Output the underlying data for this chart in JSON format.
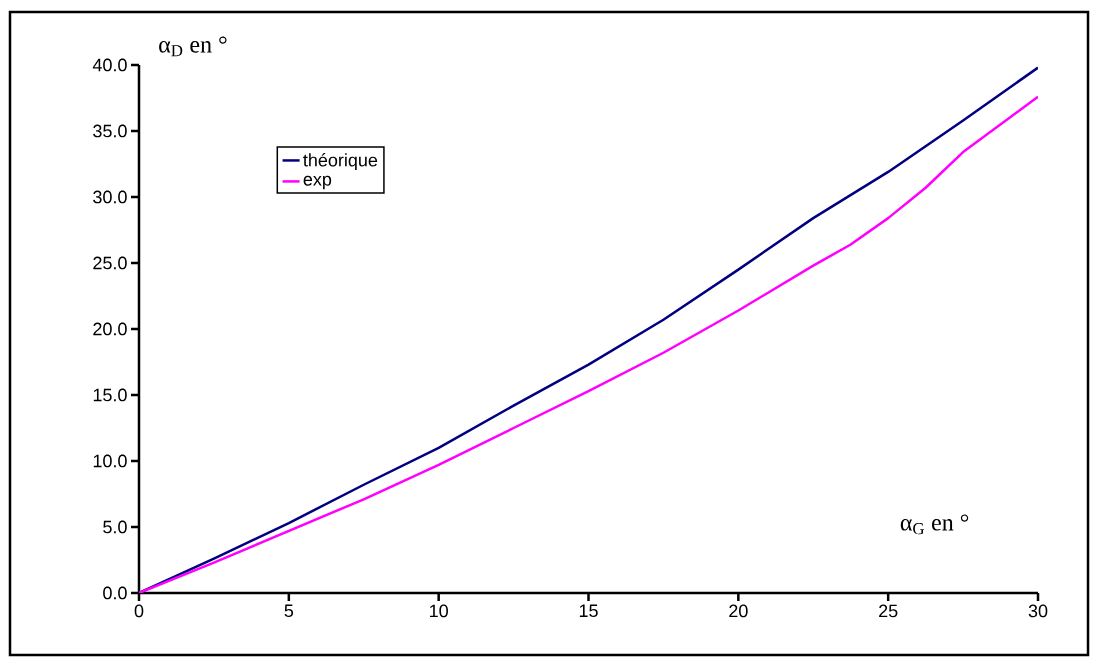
{
  "chart_data": {
    "type": "line",
    "xlabel": "α$_{G}$ en °",
    "ylabel": "α$_{D}$ en °",
    "series": [
      {
        "name": "théorique",
        "color": "#000080",
        "x": [
          0,
          2.5,
          5,
          7.5,
          10,
          12.5,
          15,
          17.5,
          20,
          22.5,
          25,
          27.5,
          30
        ],
        "values": [
          0,
          2.6,
          5.3,
          8.2,
          11.0,
          14.2,
          17.3,
          20.7,
          24.5,
          28.4,
          31.9,
          35.8,
          39.8
        ]
      },
      {
        "name": "exp",
        "color": "#ff00ff",
        "x": [
          0,
          2.5,
          5,
          7.5,
          10,
          12.5,
          15,
          17.5,
          20,
          22.5,
          23.75,
          25,
          26.25,
          27.5,
          30
        ],
        "values": [
          0,
          2.3,
          4.7,
          7.1,
          9.7,
          12.5,
          15.3,
          18.2,
          21.4,
          24.8,
          26.4,
          28.4,
          30.7,
          33.4,
          37.6
        ]
      }
    ],
    "xlim": [
      0,
      30
    ],
    "xticks": [
      0,
      5,
      10,
      15,
      20,
      25,
      30
    ],
    "ylim": [
      0,
      40
    ],
    "yticks": [
      {
        "value": 0,
        "label": "0.0"
      },
      {
        "value": 5,
        "label": "5.0"
      },
      {
        "value": 10,
        "label": "10.0"
      },
      {
        "value": 15,
        "label": "15.0"
      },
      {
        "value": 20,
        "label": "20.0"
      },
      {
        "value": 25,
        "label": "25.0"
      },
      {
        "value": 30,
        "label": "30.0"
      },
      {
        "value": 35,
        "label": "35.0"
      },
      {
        "value": 40,
        "label": "40.0"
      }
    ],
    "grid": false,
    "legend": "top left",
    "marker": "none",
    "line_style": "solid"
  }
}
